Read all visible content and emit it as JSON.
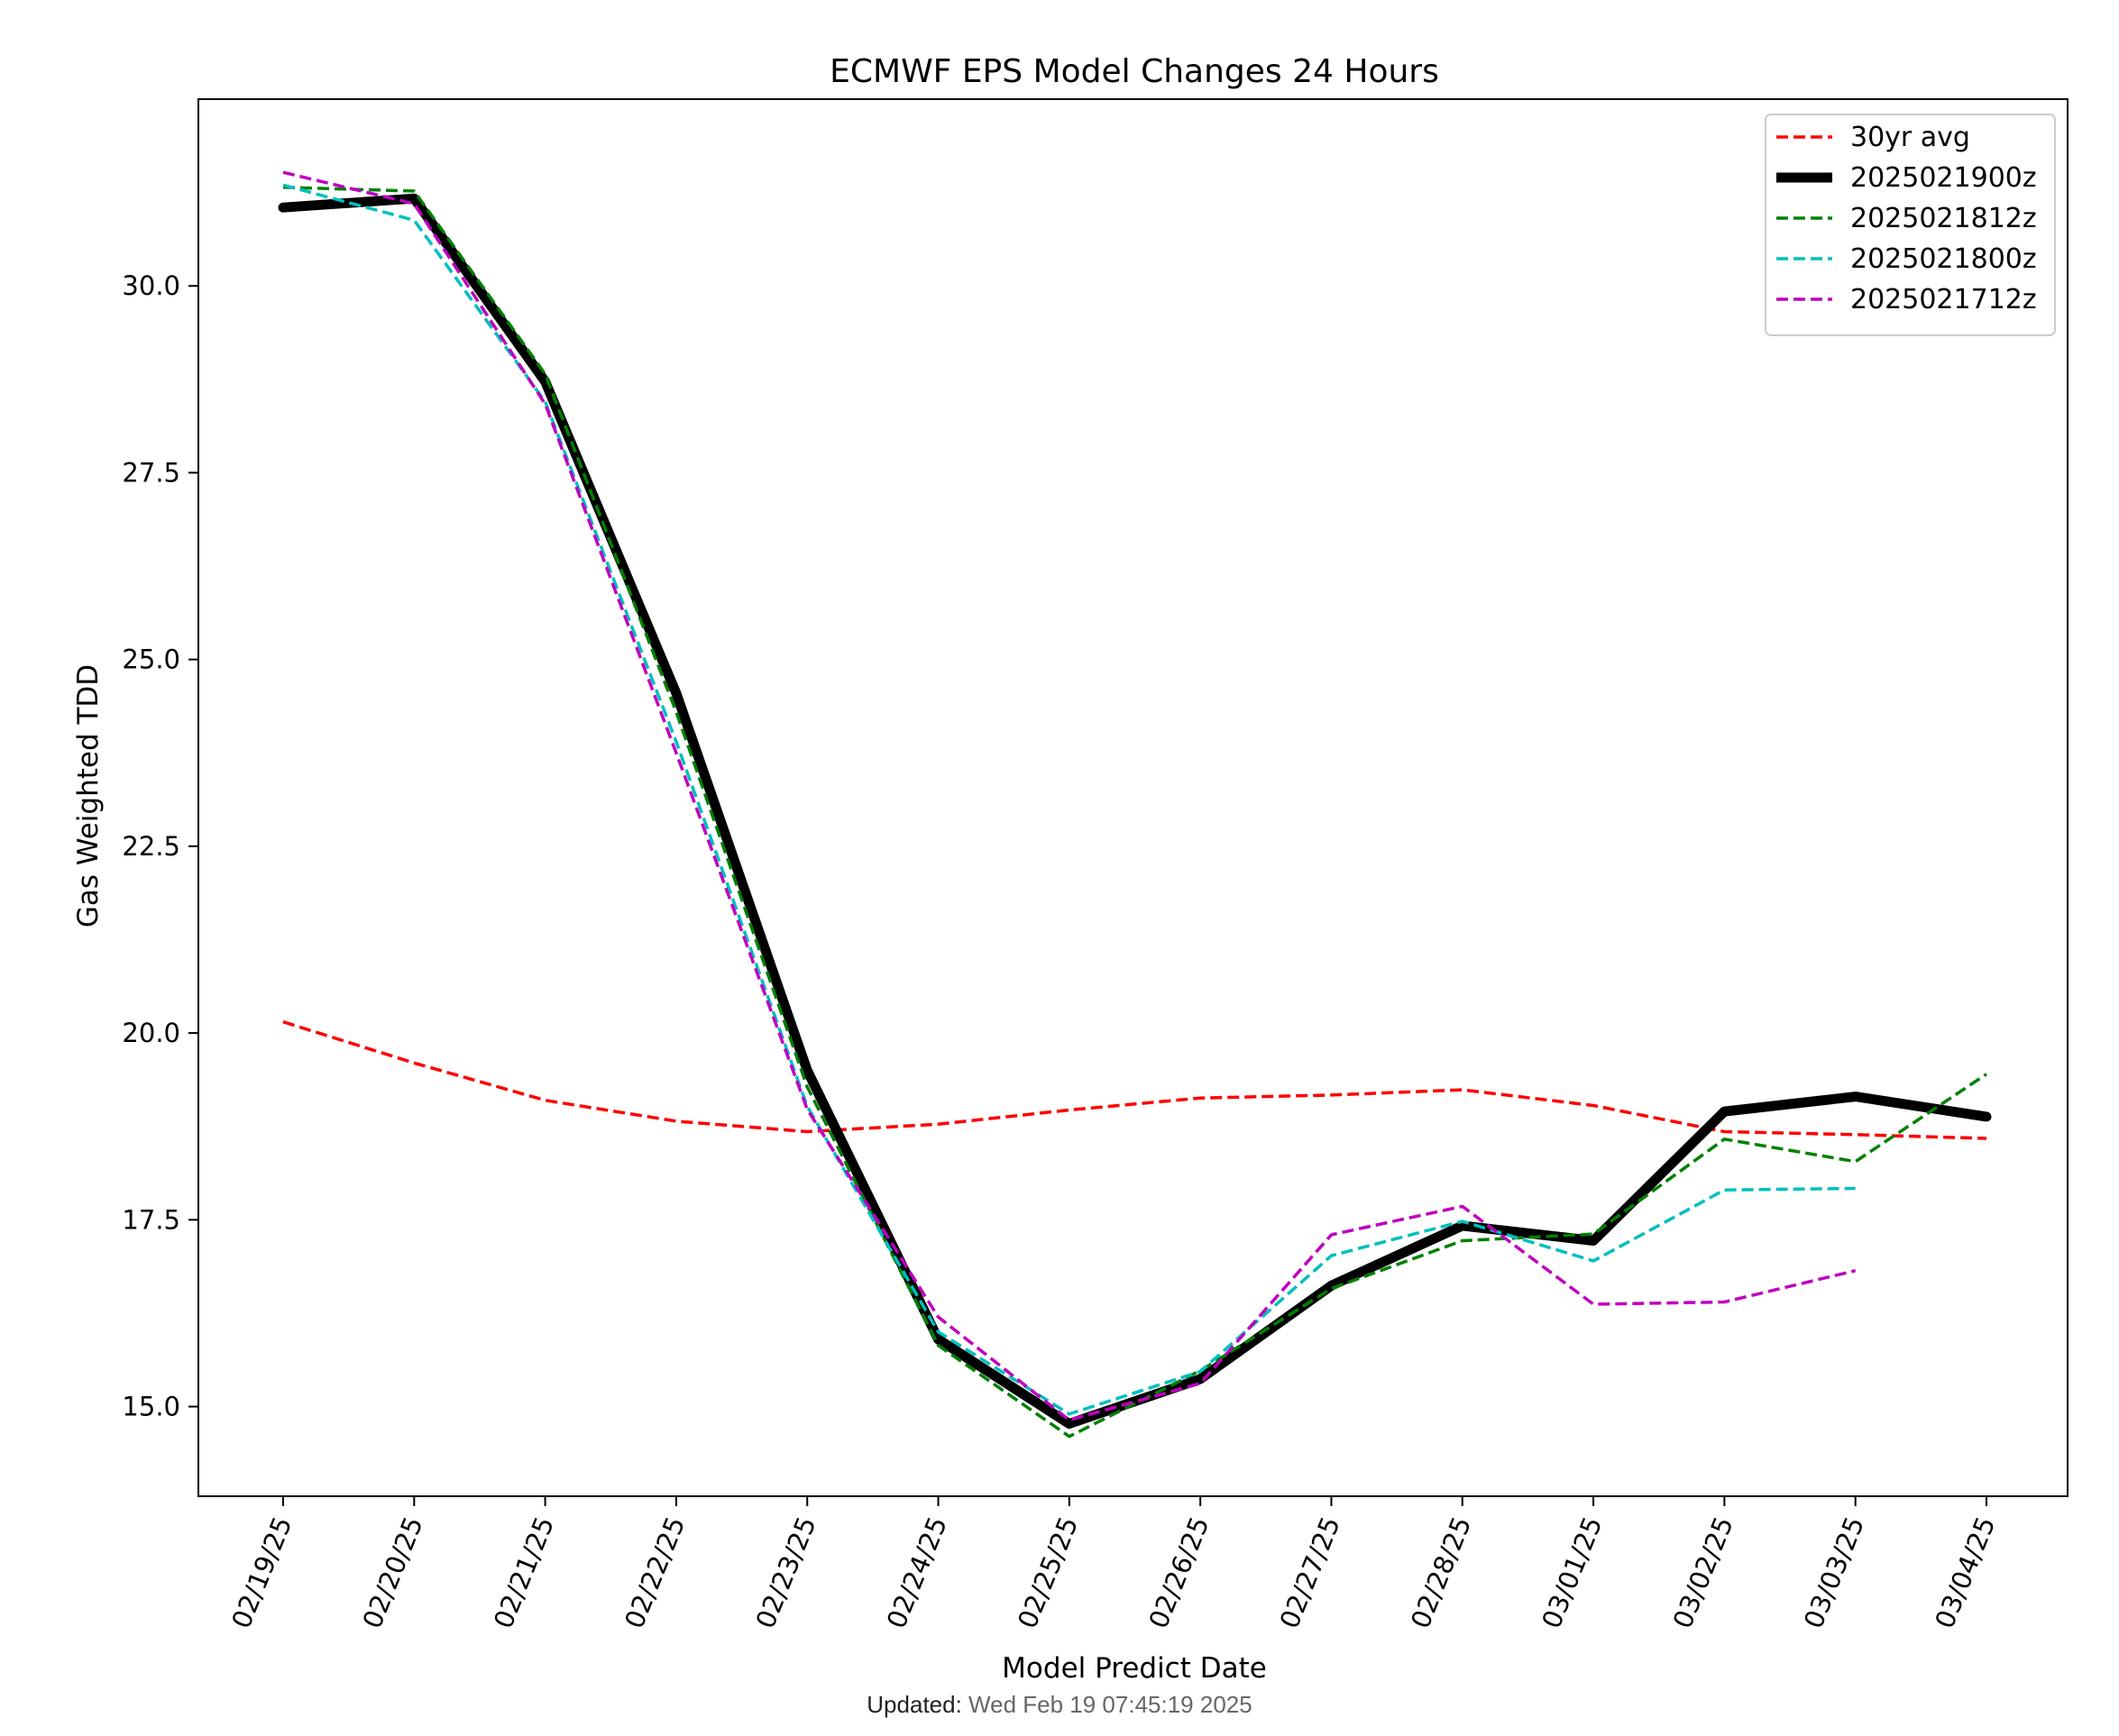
{
  "footer": {
    "label": "Updated:",
    "value": "Wed Feb 19 07:45:19 2025"
  },
  "chart_data": {
    "type": "line",
    "title": "ECMWF EPS Model Changes 24 Hours",
    "xlabel": "Model Predict Date",
    "ylabel": "Gas Weighted TDD",
    "categories": [
      "02/19/25",
      "02/20/25",
      "02/21/25",
      "02/22/25",
      "02/23/25",
      "02/24/25",
      "02/25/25",
      "02/26/25",
      "02/27/25",
      "02/28/25",
      "03/01/25",
      "03/02/25",
      "03/03/25",
      "03/04/25"
    ],
    "ylim": [
      13.8,
      32.5
    ],
    "yticks": [
      15.0,
      17.5,
      20.0,
      22.5,
      25.0,
      27.5,
      30.0
    ],
    "ytick_labels": [
      "15.0",
      "17.5",
      "20.0",
      "22.5",
      "25.0",
      "27.5",
      "30.0"
    ],
    "grid": false,
    "legend_position": "top-right",
    "series": [
      {
        "name": "30yr avg",
        "color": "#ff0000",
        "style": "dashed",
        "width": "thin",
        "values": [
          20.15,
          19.6,
          19.1,
          18.82,
          18.68,
          18.78,
          18.97,
          19.13,
          19.17,
          19.24,
          19.03,
          18.68,
          18.64,
          18.59
        ]
      },
      {
        "name": "2025021900z",
        "color": "#000000",
        "style": "solid",
        "width": "thick",
        "values": [
          31.05,
          31.17,
          28.72,
          24.55,
          19.5,
          15.9,
          14.77,
          15.37,
          16.62,
          17.42,
          17.22,
          18.95,
          19.15,
          18.88
        ]
      },
      {
        "name": "2025021812z",
        "color": "#008000",
        "style": "dashed",
        "width": "thin",
        "values": [
          31.32,
          31.27,
          28.82,
          24.3,
          19.28,
          15.82,
          14.6,
          15.48,
          16.58,
          17.22,
          17.31,
          18.58,
          18.28,
          19.45
        ]
      },
      {
        "name": "2025021800z",
        "color": "#00bfbf",
        "style": "dashed",
        "width": "thin",
        "values": [
          31.35,
          30.88,
          28.45,
          23.9,
          19.02,
          16.0,
          14.9,
          15.47,
          17.02,
          17.48,
          16.95,
          17.9,
          17.92,
          null
        ]
      },
      {
        "name": "2025021712z",
        "color": "#bf00bf",
        "style": "dashed",
        "width": "thin",
        "values": [
          31.52,
          31.1,
          28.42,
          23.75,
          18.98,
          16.2,
          14.82,
          15.31,
          17.3,
          17.68,
          16.37,
          16.4,
          16.82,
          null
        ]
      }
    ]
  }
}
